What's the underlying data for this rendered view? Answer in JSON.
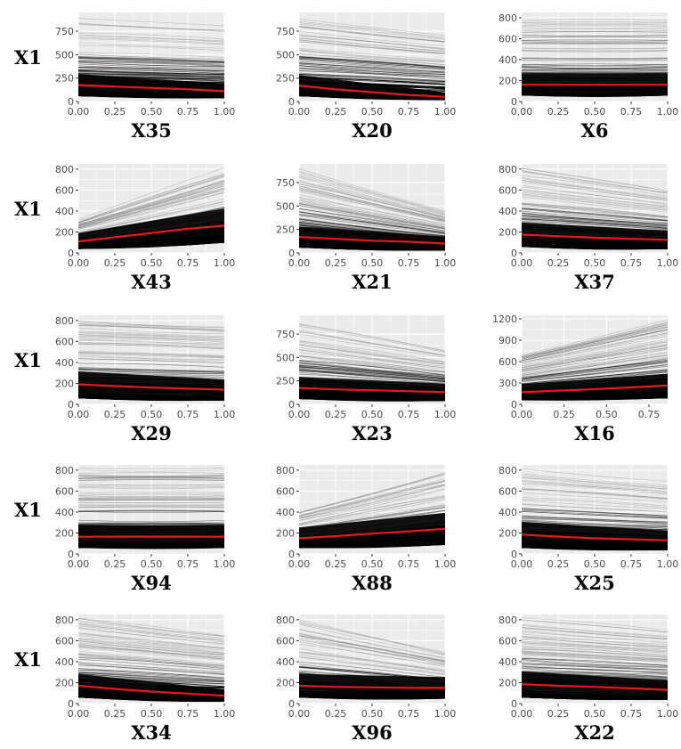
{
  "chart_data": {
    "type": "line",
    "description_free": true,
    "ylabel": "X1",
    "panel_bg": "#ebebeb",
    "grid_color": "#ffffff",
    "ice_line_color": "#000000",
    "pdp_line_color": "#e8191b",
    "panels": [
      {
        "xlabel": "X35",
        "xlim": [
          0,
          1
        ],
        "xticks": [
          "0.00",
          "0.25",
          "0.50",
          "0.75",
          "1.00"
        ],
        "xtick_values": [
          0,
          0.25,
          0.5,
          0.75,
          1
        ],
        "ylim": [
          0,
          950
        ],
        "yticks": [
          "0",
          "250",
          "500",
          "750"
        ],
        "ytick_values": [
          0,
          250,
          500,
          750
        ],
        "pdp": {
          "x": [
            0,
            0.25,
            0.5,
            0.75,
            1
          ],
          "y": [
            175,
            160,
            145,
            130,
            110
          ]
        },
        "ice_start_range": [
          60,
          900
        ],
        "ice_end_range": [
          40,
          820
        ]
      },
      {
        "xlabel": "X20",
        "xlim": [
          0,
          1
        ],
        "xticks": [
          "0.00",
          "0.25",
          "0.50",
          "0.75",
          "1.00"
        ],
        "xtick_values": [
          0,
          0.25,
          0.5,
          0.75,
          1
        ],
        "ylim": [
          0,
          950
        ],
        "yticks": [
          "0",
          "250",
          "500",
          "750"
        ],
        "ytick_values": [
          0,
          250,
          500,
          750
        ],
        "pdp": {
          "x": [
            0,
            0.25,
            0.5,
            0.75,
            1
          ],
          "y": [
            170,
            130,
            100,
            70,
            50
          ]
        },
        "ice_start_range": [
          60,
          900
        ],
        "ice_end_range": [
          20,
          720
        ]
      },
      {
        "xlabel": "X6",
        "xlim": [
          0,
          1
        ],
        "xticks": [
          "0.00",
          "0.25",
          "0.50",
          "0.75",
          "1.00"
        ],
        "xtick_values": [
          0,
          0.25,
          0.5,
          0.75,
          1
        ],
        "ylim": [
          0,
          850
        ],
        "yticks": [
          "0",
          "200",
          "400",
          "600",
          "800"
        ],
        "ytick_values": [
          0,
          200,
          400,
          600,
          800
        ],
        "pdp": {
          "x": [
            0,
            0.25,
            0.5,
            0.75,
            1
          ],
          "y": [
            160,
            160,
            160,
            160,
            160
          ]
        },
        "ice_start_range": [
          60,
          800
        ],
        "ice_end_range": [
          60,
          800
        ]
      },
      {
        "xlabel": "X43",
        "xlim": [
          0,
          1
        ],
        "xticks": [
          "0.00",
          "0.25",
          "0.50",
          "0.75",
          "1.00"
        ],
        "xtick_values": [
          0,
          0.25,
          0.5,
          0.75,
          1
        ],
        "ylim": [
          0,
          850
        ],
        "yticks": [
          "0",
          "200",
          "400",
          "600",
          "800"
        ],
        "ytick_values": [
          0,
          200,
          400,
          600,
          800
        ],
        "pdp": {
          "x": [
            0,
            0.25,
            0.5,
            0.75,
            1
          ],
          "y": [
            110,
            150,
            190,
            230,
            260
          ]
        },
        "ice_start_range": [
          40,
          320
        ],
        "ice_end_range": [
          100,
          820
        ]
      },
      {
        "xlabel": "X21",
        "xlim": [
          0,
          1
        ],
        "xticks": [
          "0.00",
          "0.25",
          "0.50",
          "0.75",
          "1.00"
        ],
        "xtick_values": [
          0,
          0.25,
          0.5,
          0.75,
          1
        ],
        "ylim": [
          0,
          950
        ],
        "yticks": [
          "0",
          "250",
          "500",
          "750"
        ],
        "ytick_values": [
          0,
          250,
          500,
          750
        ],
        "pdp": {
          "x": [
            0,
            0.25,
            0.5,
            0.75,
            1
          ],
          "y": [
            170,
            150,
            130,
            120,
            100
          ]
        },
        "ice_start_range": [
          60,
          900
        ],
        "ice_end_range": [
          30,
          450
        ]
      },
      {
        "xlabel": "X37",
        "xlim": [
          0,
          1
        ],
        "xticks": [
          "0.00",
          "0.25",
          "0.50",
          "0.75",
          "1.00"
        ],
        "xtick_values": [
          0,
          0.25,
          0.5,
          0.75,
          1
        ],
        "ylim": [
          0,
          850
        ],
        "yticks": [
          "0",
          "200",
          "400",
          "600",
          "800"
        ],
        "ytick_values": [
          0,
          200,
          400,
          600,
          800
        ],
        "pdp": {
          "x": [
            0,
            0.25,
            0.5,
            0.75,
            1
          ],
          "y": [
            175,
            160,
            145,
            135,
            125
          ]
        },
        "ice_start_range": [
          60,
          820
        ],
        "ice_end_range": [
          40,
          600
        ]
      },
      {
        "xlabel": "X29",
        "xlim": [
          0,
          1
        ],
        "xticks": [
          "0.00",
          "0.25",
          "0.50",
          "0.75",
          "1.00"
        ],
        "xtick_values": [
          0,
          0.25,
          0.5,
          0.75,
          1
        ],
        "ylim": [
          0,
          850
        ],
        "yticks": [
          "0",
          "200",
          "400",
          "600",
          "800"
        ],
        "ytick_values": [
          0,
          200,
          400,
          600,
          800
        ],
        "pdp": {
          "x": [
            0,
            0.25,
            0.5,
            0.75,
            1
          ],
          "y": [
            190,
            175,
            160,
            150,
            140
          ]
        },
        "ice_start_range": [
          60,
          820
        ],
        "ice_end_range": [
          40,
          760
        ]
      },
      {
        "xlabel": "X23",
        "xlim": [
          0,
          1
        ],
        "xticks": [
          "0.00",
          "0.25",
          "0.50",
          "0.75",
          "1.00"
        ],
        "xtick_values": [
          0,
          0.25,
          0.5,
          0.75,
          1
        ],
        "ylim": [
          0,
          950
        ],
        "yticks": [
          "0",
          "250",
          "500",
          "750"
        ],
        "ytick_values": [
          0,
          250,
          500,
          750
        ],
        "pdp": {
          "x": [
            0,
            0.25,
            0.5,
            0.75,
            1
          ],
          "y": [
            175,
            160,
            150,
            140,
            130
          ]
        },
        "ice_start_range": [
          60,
          900
        ],
        "ice_end_range": [
          40,
          600
        ]
      },
      {
        "xlabel": "X16",
        "xlim": [
          0,
          0.86
        ],
        "xticks": [
          "0.00",
          "0.25",
          "0.50",
          "0.75"
        ],
        "xtick_values": [
          0,
          0.25,
          0.5,
          0.75
        ],
        "ylim": [
          0,
          1250
        ],
        "yticks": [
          "0",
          "300",
          "600",
          "900",
          "1200"
        ],
        "ytick_values": [
          0,
          300,
          600,
          900,
          1200
        ],
        "pdp": {
          "x": [
            0,
            0.25,
            0.5,
            0.75,
            0.86
          ],
          "y": [
            170,
            195,
            220,
            250,
            265
          ]
        },
        "ice_start_range": [
          60,
          700
        ],
        "ice_end_range": [
          90,
          1200
        ]
      },
      {
        "xlabel": "X94",
        "xlim": [
          0,
          1
        ],
        "xticks": [
          "0.00",
          "0.25",
          "0.50",
          "0.75",
          "1.00"
        ],
        "xtick_values": [
          0,
          0.25,
          0.5,
          0.75,
          1
        ],
        "ylim": [
          0,
          850
        ],
        "yticks": [
          "0",
          "200",
          "400",
          "600",
          "800"
        ],
        "ytick_values": [
          0,
          200,
          400,
          600,
          800
        ],
        "pdp": {
          "x": [
            0,
            0.25,
            0.5,
            0.75,
            1
          ],
          "y": [
            165,
            165,
            165,
            165,
            165
          ]
        },
        "ice_start_range": [
          60,
          820
        ],
        "ice_end_range": [
          60,
          820
        ]
      },
      {
        "xlabel": "X88",
        "xlim": [
          0,
          1
        ],
        "xticks": [
          "0.00",
          "0.25",
          "0.50",
          "0.75",
          "1.00"
        ],
        "xtick_values": [
          0,
          0.25,
          0.5,
          0.75,
          1
        ],
        "ylim": [
          0,
          850
        ],
        "yticks": [
          "0",
          "200",
          "400",
          "600",
          "800"
        ],
        "ytick_values": [
          0,
          200,
          400,
          600,
          800
        ],
        "pdp": {
          "x": [
            0,
            0.25,
            0.5,
            0.75,
            1
          ],
          "y": [
            150,
            170,
            195,
            215,
            240
          ]
        },
        "ice_start_range": [
          60,
          420
        ],
        "ice_end_range": [
          90,
          820
        ]
      },
      {
        "xlabel": "X25",
        "xlim": [
          0,
          1
        ],
        "xticks": [
          "0.00",
          "0.25",
          "0.50",
          "0.75",
          "1.00"
        ],
        "xtick_values": [
          0,
          0.25,
          0.5,
          0.75,
          1
        ],
        "ylim": [
          0,
          850
        ],
        "yticks": [
          "0",
          "200",
          "400",
          "600",
          "800"
        ],
        "ytick_values": [
          0,
          200,
          400,
          600,
          800
        ],
        "pdp": {
          "x": [
            0,
            0.25,
            0.5,
            0.75,
            1
          ],
          "y": [
            185,
            165,
            150,
            140,
            130
          ]
        },
        "ice_start_range": [
          60,
          820
        ],
        "ice_end_range": [
          40,
          700
        ]
      },
      {
        "xlabel": "X34",
        "xlim": [
          0,
          1
        ],
        "xticks": [
          "0.00",
          "0.25",
          "0.50",
          "0.75",
          "1.00"
        ],
        "xtick_values": [
          0,
          0.25,
          0.5,
          0.75,
          1
        ],
        "ylim": [
          0,
          850
        ],
        "yticks": [
          "0",
          "200",
          "400",
          "600",
          "800"
        ],
        "ytick_values": [
          0,
          200,
          400,
          600,
          800
        ],
        "pdp": {
          "x": [
            0,
            0.25,
            0.5,
            0.75,
            1
          ],
          "y": [
            170,
            140,
            115,
            95,
            75
          ]
        },
        "ice_start_range": [
          60,
          820
        ],
        "ice_end_range": [
          20,
          650
        ]
      },
      {
        "xlabel": "X96",
        "xlim": [
          0,
          1
        ],
        "xticks": [
          "0.00",
          "0.25",
          "0.50",
          "0.75",
          "1.00"
        ],
        "xtick_values": [
          0,
          0.25,
          0.5,
          0.75,
          1
        ],
        "ylim": [
          0,
          850
        ],
        "yticks": [
          "0",
          "200",
          "400",
          "600",
          "800"
        ],
        "ytick_values": [
          0,
          200,
          400,
          600,
          800
        ],
        "pdp": {
          "x": [
            0,
            0.25,
            0.5,
            0.75,
            1
          ],
          "y": [
            170,
            160,
            155,
            150,
            150
          ]
        },
        "ice_start_range": [
          60,
          820
        ],
        "ice_end_range": [
          50,
          500
        ]
      },
      {
        "xlabel": "X22",
        "xlim": [
          0,
          1
        ],
        "xticks": [
          "0.00",
          "0.25",
          "0.50",
          "0.75",
          "1.00"
        ],
        "xtick_values": [
          0,
          0.25,
          0.5,
          0.75,
          1
        ],
        "ylim": [
          0,
          850
        ],
        "yticks": [
          "0",
          "200",
          "400",
          "600",
          "800"
        ],
        "ytick_values": [
          0,
          200,
          400,
          600,
          800
        ],
        "pdp": {
          "x": [
            0,
            0.25,
            0.5,
            0.75,
            1
          ],
          "y": [
            185,
            170,
            160,
            145,
            130
          ]
        },
        "ice_start_range": [
          60,
          820
        ],
        "ice_end_range": [
          40,
          700
        ]
      }
    ]
  }
}
